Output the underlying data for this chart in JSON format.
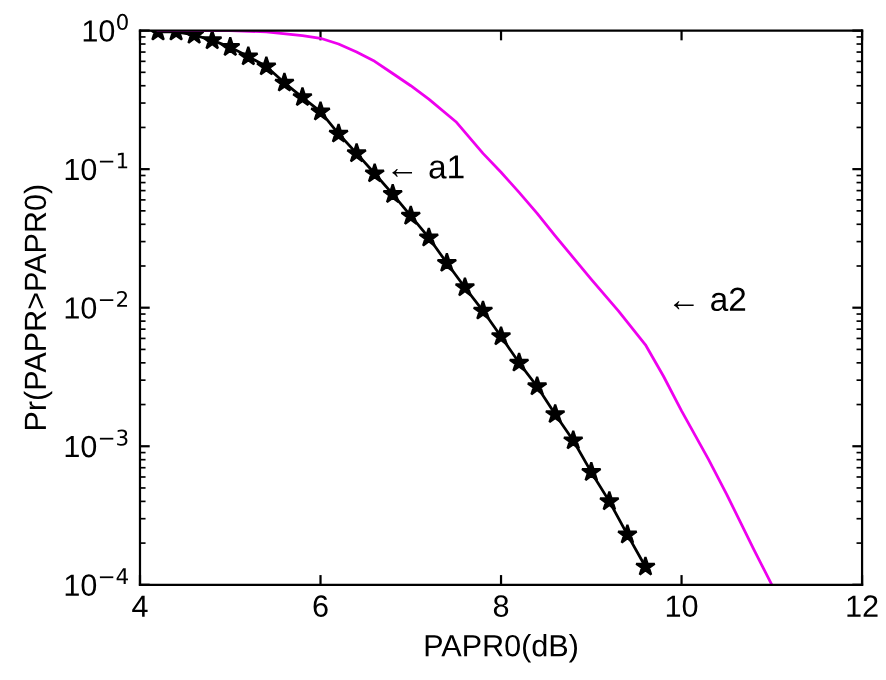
{
  "chart_data": {
    "type": "line",
    "xlabel": "PAPR0(dB)",
    "ylabel": "Pr(PAPR>PAPR0)",
    "log": "y",
    "grid": false,
    "legend": false,
    "xlim": [
      4,
      12
    ],
    "xticks": [
      4,
      6,
      8,
      10,
      12
    ],
    "ylim": [
      0.0001,
      1
    ],
    "yticks": [
      {
        "value": 0.0001,
        "label": "10$^{−4}$"
      },
      {
        "value": 0.001,
        "label": "10$^{−3}$"
      },
      {
        "value": 0.01,
        "label": "10$^{−2}$"
      },
      {
        "value": 0.1,
        "label": "10$^{−1}$"
      },
      {
        "value": 1,
        "label": "10$^{0}$"
      }
    ],
    "series": [
      {
        "color": "#000000",
        "marker": "star",
        "line_style": "solid",
        "x": [
          4.2,
          4.4,
          4.6,
          4.8,
          5.0,
          5.2,
          5.4,
          5.6,
          5.8,
          6.0,
          6.2,
          6.4,
          6.6,
          6.8,
          7.0,
          7.2,
          7.4,
          7.6,
          7.8,
          8.0,
          8.2,
          8.4,
          8.6,
          8.8,
          9.0,
          9.2,
          9.4,
          9.6
        ],
        "values": [
          0.98,
          0.98,
          0.93,
          0.85,
          0.76,
          0.65,
          0.55,
          0.42,
          0.33,
          0.26,
          0.18,
          0.13,
          0.093,
          0.066,
          0.046,
          0.032,
          0.021,
          0.014,
          0.0095,
          0.0062,
          0.004,
          0.0027,
          0.0017,
          0.0011,
          0.00065,
          0.0004,
          0.00023,
          0.000135
        ]
      },
      {
        "color": "#ee00ee",
        "marker": "none",
        "line_style": "solid",
        "x": [
          4.2,
          4.6,
          5.0,
          5.4,
          5.8,
          6.0,
          6.2,
          6.4,
          6.6,
          6.8,
          7.0,
          7.2,
          7.5,
          7.8,
          8.0,
          8.2,
          8.4,
          8.6,
          8.8,
          9.0,
          9.3,
          9.6,
          9.8,
          10.0,
          10.3,
          10.5,
          10.8,
          11.0
        ],
        "values": [
          1.0,
          1.0,
          0.998,
          0.98,
          0.92,
          0.88,
          0.8,
          0.7,
          0.6,
          0.49,
          0.4,
          0.32,
          0.22,
          0.13,
          0.095,
          0.068,
          0.048,
          0.033,
          0.023,
          0.016,
          0.0095,
          0.0054,
          0.0032,
          0.0018,
          0.0008,
          0.00045,
          0.00018,
          0.0001
        ]
      }
    ],
    "annotations": [
      "← a1",
      "← a2"
    ]
  }
}
